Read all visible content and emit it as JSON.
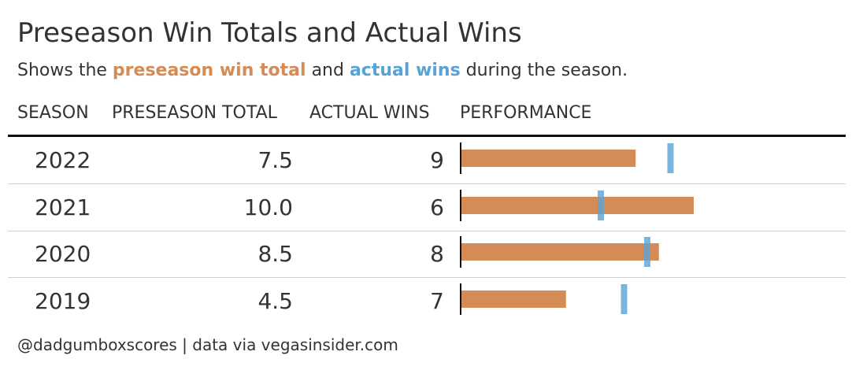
{
  "title": "Preseason Win Totals and Actual Wins",
  "subtitle": {
    "prefix": "Shows the",
    "highlight1": "preseason win total",
    "middle": "and",
    "highlight2": "actual wins",
    "suffix": "during the season."
  },
  "colors": {
    "preseason": "#d48b56",
    "actual": "#5aa2d6"
  },
  "footer": "@dadgumboxscores | data via vegasinsider.com",
  "chart_data": {
    "type": "table",
    "columns": [
      "SEASON",
      "PRESEASON TOTAL",
      "ACTUAL WINS",
      "PERFORMANCE"
    ],
    "rows": [
      {
        "season": "2022",
        "preseason_total": "7.5",
        "actual_wins": "9",
        "preseason_value": 7.5,
        "actual_value": 9
      },
      {
        "season": "2021",
        "preseason_total": "10.0",
        "actual_wins": "6",
        "preseason_value": 10.0,
        "actual_value": 6
      },
      {
        "season": "2020",
        "preseason_total": "8.5",
        "actual_wins": "8",
        "preseason_value": 8.5,
        "actual_value": 8
      },
      {
        "season": "2019",
        "preseason_total": "4.5",
        "actual_wins": "7",
        "preseason_value": 4.5,
        "actual_value": 7
      }
    ],
    "performance_axis": {
      "min": 0,
      "max": 17
    }
  }
}
